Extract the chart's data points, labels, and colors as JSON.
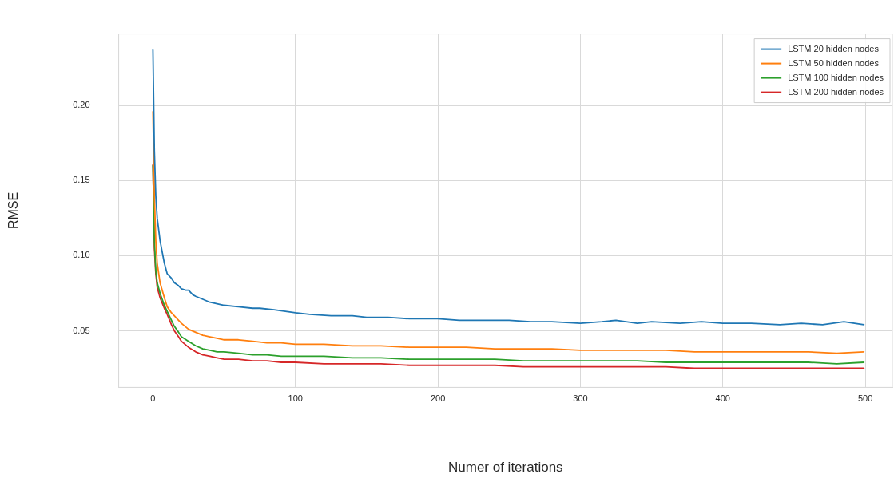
{
  "chart_data": {
    "type": "line",
    "xlabel": "Numer of iterations",
    "ylabel": "RMSE",
    "xlim": [
      -24,
      519
    ],
    "ylim": [
      0.0123,
      0.2477
    ],
    "xticks": [
      0,
      100,
      200,
      300,
      400,
      500
    ],
    "yticks": [
      {
        "value": 0.05,
        "label": "0.05"
      },
      {
        "value": 0.1,
        "label": "0.10"
      },
      {
        "value": 0.15,
        "label": "0.15"
      },
      {
        "value": 0.2,
        "label": "0.20"
      }
    ],
    "grid": true,
    "legend": "top right",
    "marker": "none",
    "line_style": "solid",
    "series": [
      {
        "name": "LSTM 20 hidden nodes",
        "color": "#1f77b4",
        "x": [
          0,
          1,
          2,
          3,
          5,
          8,
          10,
          13,
          15,
          18,
          20,
          23,
          25,
          28,
          30,
          35,
          40,
          45,
          50,
          60,
          70,
          75,
          85,
          100,
          110,
          125,
          140,
          150,
          165,
          180,
          200,
          215,
          230,
          250,
          265,
          280,
          300,
          315,
          325,
          340,
          350,
          370,
          385,
          400,
          420,
          440,
          455,
          470,
          485,
          499
        ],
        "values": [
          0.237,
          0.17,
          0.14,
          0.125,
          0.11,
          0.095,
          0.088,
          0.085,
          0.082,
          0.08,
          0.078,
          0.077,
          0.077,
          0.074,
          0.073,
          0.071,
          0.069,
          0.068,
          0.067,
          0.066,
          0.065,
          0.065,
          0.064,
          0.062,
          0.061,
          0.06,
          0.06,
          0.059,
          0.059,
          0.058,
          0.058,
          0.057,
          0.057,
          0.057,
          0.056,
          0.056,
          0.055,
          0.056,
          0.057,
          0.055,
          0.056,
          0.055,
          0.056,
          0.055,
          0.055,
          0.054,
          0.055,
          0.054,
          0.056,
          0.054
        ]
      },
      {
        "name": "LSTM 50 hidden nodes",
        "color": "#ff7f0e",
        "x": [
          0,
          1,
          2,
          3,
          5,
          8,
          10,
          13,
          15,
          18,
          20,
          25,
          30,
          35,
          40,
          45,
          50,
          60,
          70,
          80,
          90,
          100,
          120,
          140,
          160,
          180,
          200,
          220,
          240,
          260,
          280,
          300,
          320,
          340,
          360,
          380,
          400,
          420,
          440,
          460,
          480,
          499
        ],
        "values": [
          0.196,
          0.14,
          0.11,
          0.095,
          0.082,
          0.072,
          0.066,
          0.062,
          0.06,
          0.057,
          0.055,
          0.051,
          0.049,
          0.047,
          0.046,
          0.045,
          0.044,
          0.044,
          0.043,
          0.042,
          0.042,
          0.041,
          0.041,
          0.04,
          0.04,
          0.039,
          0.039,
          0.039,
          0.038,
          0.038,
          0.038,
          0.037,
          0.037,
          0.037,
          0.037,
          0.036,
          0.036,
          0.036,
          0.036,
          0.036,
          0.035,
          0.036
        ]
      },
      {
        "name": "LSTM 100 hidden nodes",
        "color": "#2ca02c",
        "x": [
          0,
          1,
          2,
          3,
          5,
          8,
          10,
          13,
          15,
          18,
          20,
          25,
          30,
          35,
          40,
          45,
          50,
          60,
          70,
          80,
          90,
          100,
          120,
          140,
          160,
          180,
          200,
          220,
          240,
          260,
          280,
          300,
          320,
          340,
          360,
          380,
          400,
          420,
          440,
          460,
          480,
          499
        ],
        "values": [
          0.16,
          0.11,
          0.09,
          0.082,
          0.075,
          0.067,
          0.063,
          0.057,
          0.053,
          0.049,
          0.046,
          0.043,
          0.04,
          0.038,
          0.037,
          0.036,
          0.036,
          0.035,
          0.034,
          0.034,
          0.033,
          0.033,
          0.033,
          0.032,
          0.032,
          0.031,
          0.031,
          0.031,
          0.031,
          0.03,
          0.03,
          0.03,
          0.03,
          0.03,
          0.029,
          0.029,
          0.029,
          0.029,
          0.029,
          0.029,
          0.028,
          0.029
        ]
      },
      {
        "name": "LSTM 200 hidden nodes",
        "color": "#d62728",
        "x": [
          0,
          1,
          2,
          3,
          5,
          8,
          10,
          13,
          15,
          18,
          20,
          25,
          30,
          35,
          40,
          45,
          50,
          60,
          70,
          80,
          90,
          100,
          120,
          140,
          160,
          180,
          200,
          220,
          240,
          260,
          280,
          300,
          320,
          340,
          360,
          380,
          400,
          420,
          440,
          460,
          480,
          499
        ],
        "values": [
          0.161,
          0.105,
          0.088,
          0.079,
          0.072,
          0.065,
          0.061,
          0.054,
          0.05,
          0.046,
          0.043,
          0.039,
          0.036,
          0.034,
          0.033,
          0.032,
          0.031,
          0.031,
          0.03,
          0.03,
          0.029,
          0.029,
          0.028,
          0.028,
          0.028,
          0.027,
          0.027,
          0.027,
          0.027,
          0.026,
          0.026,
          0.026,
          0.026,
          0.026,
          0.026,
          0.025,
          0.025,
          0.025,
          0.025,
          0.025,
          0.025,
          0.025
        ]
      }
    ]
  }
}
